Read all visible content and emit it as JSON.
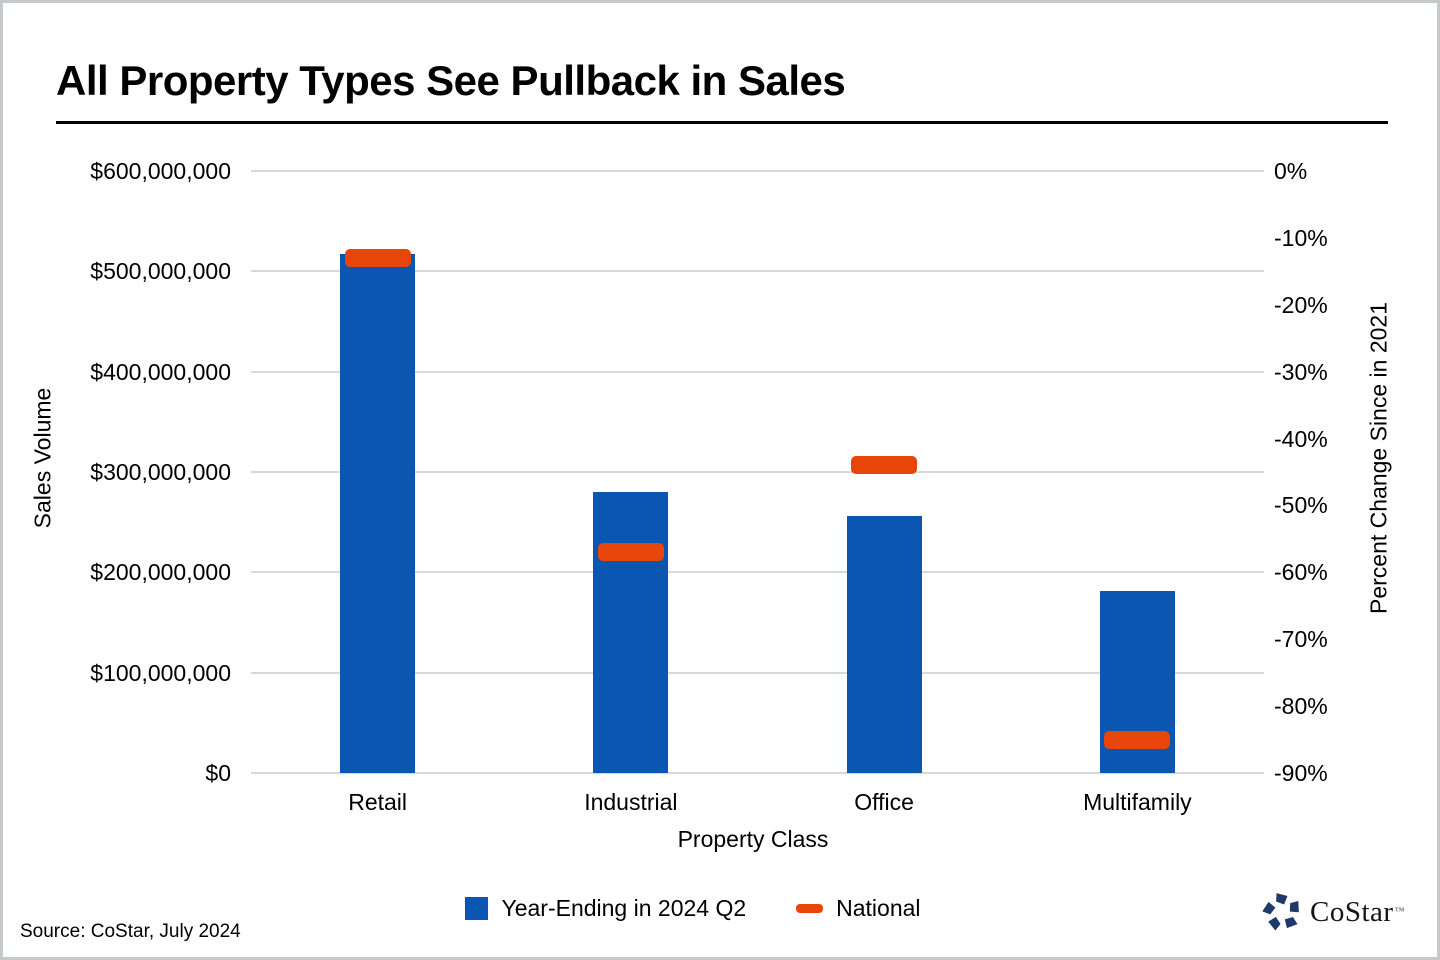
{
  "frame": {
    "source": "Source: CoStar, July 2024",
    "logo_text": "CoStar",
    "logo_tm": "TM",
    "logo_color": "#1e3a6d"
  },
  "chart_data": {
    "type": "bar",
    "title": "All Property Types See Pullback in Sales",
    "categories": [
      "Retail",
      "Industrial",
      "Office",
      "Multifamily"
    ],
    "series": [
      {
        "name": "Year-Ending in 2024 Q2",
        "axis": "left",
        "units": "USD",
        "values": [
          517000000,
          280000000,
          256000000,
          181000000
        ],
        "color": "#0a56b0",
        "mark": "bar"
      },
      {
        "name": "National",
        "axis": "right",
        "units": "percent",
        "values": [
          -13,
          -57,
          -44,
          -85
        ],
        "color": "#e8450b",
        "mark": "dash"
      }
    ],
    "xlabel": "Property Class",
    "ylabel_left": "Sales Volume",
    "ylabel_right": "Percent Change Since in 2021",
    "left_axis": {
      "min": 0,
      "max": 600000000,
      "tick_values": [
        600000000,
        500000000,
        400000000,
        300000000,
        200000000,
        100000000,
        0
      ],
      "tick_labels": [
        "$600,000,000",
        "$500,000,000",
        "$400,000,000",
        "$300,000,000",
        "$200,000,000",
        "$100,000,000",
        "$0"
      ]
    },
    "right_axis": {
      "min": -90,
      "max": 0,
      "tick_values": [
        0,
        -10,
        -20,
        -30,
        -40,
        -50,
        -60,
        -70,
        -80,
        -90
      ],
      "tick_labels": [
        "0%",
        "-10%",
        "-20%",
        "-30%",
        "-40%",
        "-50%",
        "-60%",
        "-70%",
        "-80%",
        "-90%"
      ]
    },
    "grid": true,
    "legend_position": "bottom",
    "gridline_color": "#d9d9d9"
  }
}
